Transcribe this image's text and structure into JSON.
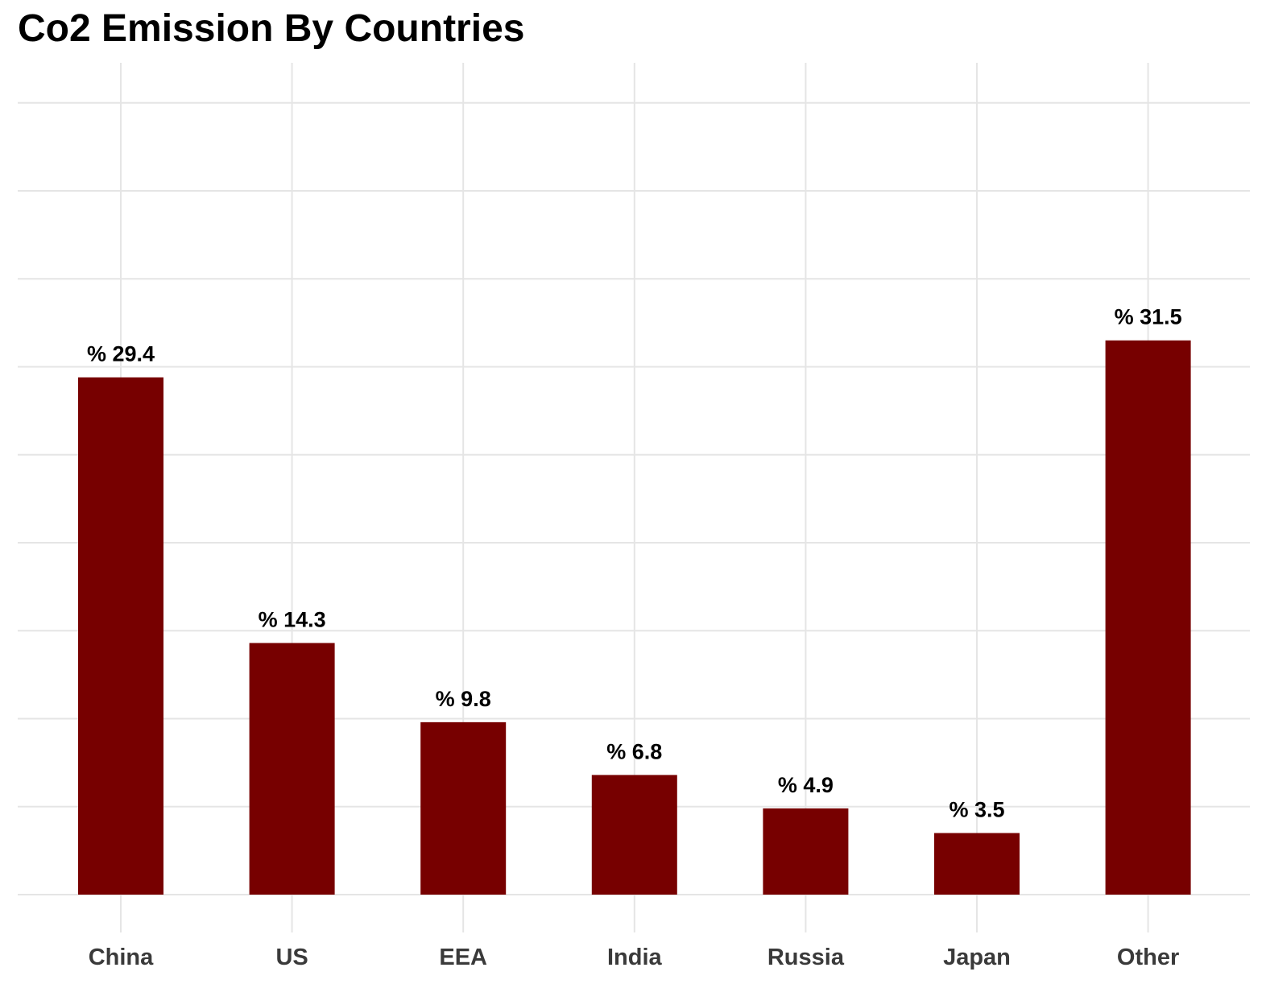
{
  "chart_data": {
    "type": "bar",
    "title": "Co2 Emission By Countries",
    "xlabel": "",
    "ylabel": "",
    "categories": [
      "China",
      "US",
      "EEA",
      "India",
      "Russia",
      "Japan",
      "Other"
    ],
    "values": [
      29.4,
      14.3,
      9.8,
      6.8,
      4.9,
      3.5,
      31.5
    ],
    "data_labels": [
      "% 29.4",
      "% 14.3",
      "% 9.8",
      "% 6.8",
      "% 4.9",
      "% 3.5",
      "% 31.5"
    ],
    "ylim": [
      0,
      45
    ],
    "grid": true,
    "y_tick_labels_shown": false,
    "bar_color": "#770000",
    "grid_color": "#e5e5e5",
    "tick_label_color": "#3a3a3a"
  }
}
